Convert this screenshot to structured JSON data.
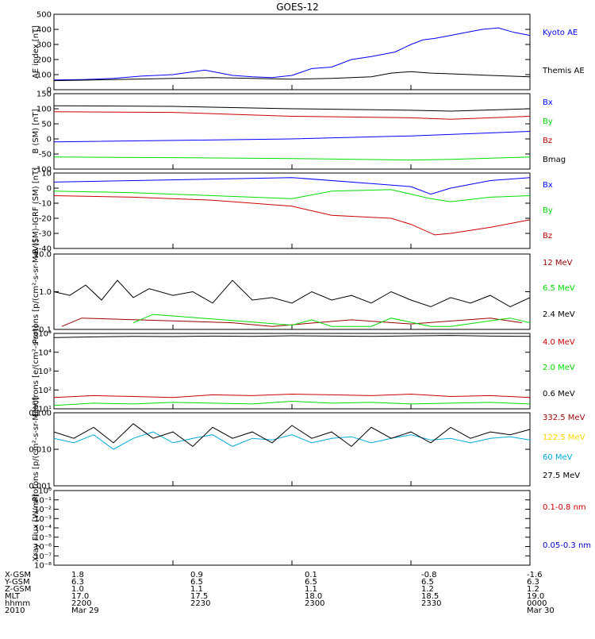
{
  "title": "GOES-12",
  "colors": {
    "black": "#000000",
    "blue": "#0000ff",
    "red": "#cc0000",
    "green": "#00dd00",
    "darkred": "#990000",
    "cyan": "#00aadd",
    "yellow": "#ffd700",
    "navy": "#0000cc"
  },
  "chart_data": [
    {
      "type": "line",
      "ylabel": "AE index [nT]",
      "yscale": "linear",
      "ylim": [
        0,
        500
      ],
      "yticks": [
        "0",
        "100",
        "200",
        "300",
        "400",
        "500"
      ],
      "xlim": [
        0,
        120
      ],
      "series": [
        {
          "name": "Kyoto AE",
          "color": "#0000ff",
          "x": [
            0,
            8,
            15,
            22,
            30,
            38,
            45,
            50,
            55,
            60,
            65,
            70,
            75,
            80,
            86,
            90,
            93,
            96,
            100,
            104,
            108,
            112,
            116,
            120
          ],
          "values": [
            65,
            68,
            75,
            90,
            100,
            130,
            95,
            85,
            80,
            95,
            140,
            150,
            200,
            220,
            250,
            300,
            330,
            340,
            360,
            380,
            400,
            410,
            380,
            360
          ]
        },
        {
          "name": "Themis AE",
          "color": "#000000",
          "x": [
            0,
            10,
            20,
            30,
            40,
            50,
            60,
            70,
            75,
            80,
            85,
            90,
            95,
            100,
            105,
            110,
            115,
            120
          ],
          "values": [
            60,
            65,
            70,
            75,
            80,
            75,
            70,
            75,
            80,
            85,
            110,
            120,
            110,
            105,
            100,
            95,
            90,
            85
          ]
        }
      ]
    },
    {
      "type": "line",
      "ylabel": "B (SM) [nT]",
      "yscale": "linear",
      "ylim": [
        -100,
        150
      ],
      "yticks": [
        "-100",
        "-50",
        "0",
        "50",
        "100",
        "150"
      ],
      "xlim": [
        0,
        120
      ],
      "series": [
        {
          "name": "Bx",
          "color": "#0000ff",
          "x": [
            0,
            30,
            60,
            90,
            120
          ],
          "values": [
            -10,
            -5,
            0,
            10,
            25
          ]
        },
        {
          "name": "By",
          "color": "#00dd00",
          "x": [
            0,
            30,
            60,
            90,
            100,
            120
          ],
          "values": [
            -60,
            -62,
            -65,
            -70,
            -68,
            -60
          ]
        },
        {
          "name": "Bz",
          "color": "#cc0000",
          "x": [
            0,
            30,
            60,
            90,
            100,
            120
          ],
          "values": [
            90,
            88,
            75,
            70,
            65,
            75
          ]
        },
        {
          "name": "Bmag",
          "color": "#000000",
          "x": [
            0,
            30,
            60,
            90,
            100,
            120
          ],
          "values": [
            110,
            108,
            100,
            95,
            92,
            100
          ]
        }
      ]
    },
    {
      "type": "line",
      "ylabel": "B (SM)-IGRF (SM) [nT]",
      "yscale": "linear",
      "ylim": [
        -40,
        10
      ],
      "yticks": [
        "-40",
        "-30",
        "-20",
        "-10",
        "0",
        "10"
      ],
      "xlim": [
        0,
        120
      ],
      "series": [
        {
          "name": "Bx",
          "color": "#0000ff",
          "x": [
            0,
            20,
            40,
            60,
            80,
            90,
            95,
            100,
            110,
            120
          ],
          "values": [
            4,
            5,
            6,
            7,
            3,
            1,
            -4,
            0,
            5,
            7
          ]
        },
        {
          "name": "By",
          "color": "#00dd00",
          "x": [
            0,
            20,
            40,
            60,
            70,
            85,
            95,
            100,
            110,
            120
          ],
          "values": [
            -2,
            -3,
            -5,
            -7,
            -2,
            -1,
            -7,
            -9,
            -6,
            -5
          ]
        },
        {
          "name": "Bz",
          "color": "#cc0000",
          "x": [
            0,
            20,
            40,
            60,
            70,
            85,
            90,
            96,
            100,
            110,
            120
          ],
          "values": [
            -5,
            -6,
            -8,
            -12,
            -18,
            -20,
            -24,
            -31,
            -30,
            -26,
            -21
          ]
        }
      ]
    },
    {
      "type": "line",
      "ylabel": "Protons [p/(cm²-s-sr-MeV)]",
      "yscale": "log",
      "ylim": [
        0.1,
        10
      ],
      "yticks": [
        "0.1",
        "1.0",
        "10.0"
      ],
      "xlim": [
        0,
        120
      ],
      "series": [
        {
          "name": "12 MeV",
          "color": "#990000",
          "x": [
            2,
            7,
            45,
            55,
            75,
            90,
            110,
            118
          ],
          "values": [
            0.12,
            0.2,
            0.15,
            0.12,
            0.18,
            0.14,
            0.2,
            0.15
          ]
        },
        {
          "name": "6.5 MeV",
          "color": "#00dd00",
          "x": [
            20,
            25,
            60,
            65,
            70,
            80,
            85,
            95,
            100,
            115,
            120
          ],
          "values": [
            0.15,
            0.25,
            0.13,
            0.18,
            0.12,
            0.12,
            0.2,
            0.12,
            0.12,
            0.2,
            0.15
          ]
        },
        {
          "name": "2.4 MeV",
          "color": "#000000",
          "x": [
            0,
            4,
            8,
            12,
            16,
            20,
            24,
            30,
            35,
            40,
            45,
            50,
            55,
            60,
            65,
            70,
            75,
            80,
            85,
            90,
            95,
            100,
            105,
            110,
            115,
            120
          ],
          "values": [
            1.0,
            0.8,
            1.5,
            0.6,
            2.0,
            0.7,
            1.2,
            0.8,
            1.0,
            0.5,
            2.0,
            0.6,
            0.7,
            0.5,
            1.0,
            0.6,
            0.8,
            0.5,
            1.0,
            0.6,
            0.4,
            0.7,
            0.5,
            0.8,
            0.4,
            0.7
          ]
        }
      ]
    },
    {
      "type": "line",
      "ylabel": "Electrons [e/(cm²-s-sr)]",
      "yscale": "log",
      "ylim": [
        10,
        100000
      ],
      "yticks": [
        "10¹",
        "10²",
        "10³",
        "10⁴",
        "10⁵"
      ],
      "xlim": [
        0,
        120
      ],
      "series": [
        {
          "name": "4.0 MeV",
          "color": "#cc0000",
          "x": [
            0,
            10,
            20,
            30,
            40,
            50,
            60,
            70,
            80,
            90,
            100,
            110,
            120
          ],
          "values": [
            40,
            50,
            45,
            40,
            55,
            50,
            60,
            55,
            50,
            60,
            45,
            50,
            40
          ]
        },
        {
          "name": "2.0 MeV",
          "color": "#00dd00",
          "x": [
            0,
            10,
            20,
            30,
            40,
            50,
            60,
            70,
            80,
            90,
            100,
            110,
            120
          ],
          "values": [
            15,
            20,
            18,
            22,
            20,
            18,
            25,
            20,
            22,
            18,
            20,
            22,
            18
          ]
        },
        {
          "name": "0.6 MeV",
          "color": "#000000",
          "x": [
            0,
            10,
            20,
            30,
            40,
            50,
            60,
            70,
            80,
            90,
            100,
            110,
            120
          ],
          "values": [
            60000,
            65000,
            70000,
            68000,
            72000,
            70000,
            75000,
            72000,
            70000,
            74000,
            78000,
            72000,
            70000
          ]
        }
      ]
    },
    {
      "type": "line",
      "ylabel": "Protons [p/(cm²-s-sr-MeV)]",
      "yscale": "log",
      "ylim": [
        0.001,
        0.1
      ],
      "yticks": [
        "0.001",
        "0.010",
        "0.100"
      ],
      "xlim": [
        0,
        120
      ],
      "series": [
        {
          "name": "332.5 MeV",
          "color": "#990000",
          "x": [],
          "values": []
        },
        {
          "name": "122.5 MeV",
          "color": "#ffd700",
          "x": [],
          "values": []
        },
        {
          "name": "60 MeV",
          "color": "#00aadd",
          "x": [
            0,
            5,
            10,
            15,
            20,
            25,
            30,
            35,
            40,
            45,
            50,
            55,
            60,
            65,
            70,
            75,
            80,
            85,
            90,
            95,
            100,
            105,
            110,
            115,
            120
          ],
          "values": [
            0.02,
            0.015,
            0.025,
            0.01,
            0.02,
            0.03,
            0.015,
            0.02,
            0.025,
            0.012,
            0.02,
            0.018,
            0.025,
            0.015,
            0.02,
            0.022,
            0.015,
            0.02,
            0.025,
            0.018,
            0.02,
            0.015,
            0.02,
            0.022,
            0.018
          ]
        },
        {
          "name": "27.5 MeV",
          "color": "#000000",
          "x": [
            0,
            5,
            10,
            15,
            20,
            25,
            30,
            35,
            40,
            45,
            50,
            55,
            60,
            65,
            70,
            75,
            80,
            85,
            90,
            95,
            100,
            105,
            110,
            115,
            120
          ],
          "values": [
            0.03,
            0.02,
            0.04,
            0.015,
            0.05,
            0.02,
            0.03,
            0.012,
            0.04,
            0.02,
            0.03,
            0.015,
            0.045,
            0.02,
            0.03,
            0.012,
            0.04,
            0.02,
            0.03,
            0.015,
            0.04,
            0.02,
            0.03,
            0.025,
            0.035
          ]
        }
      ]
    },
    {
      "type": "line",
      "ylabel": "Xray Flux [W/m²]",
      "yscale": "log",
      "ylim": [
        1e-08,
        1
      ],
      "yticks": [
        "10⁻⁸",
        "10⁻⁷",
        "10⁻⁶",
        "10⁻⁵",
        "10⁻⁴",
        "10⁻³",
        "10⁻²",
        "10⁻¹",
        "10⁰"
      ],
      "xlim": [
        0,
        120
      ],
      "series": [
        {
          "name": "0.1-0.8 nm",
          "color": "#cc0000",
          "x": [],
          "values": []
        },
        {
          "name": "0.05-0.3 nm",
          "color": "#0000cc",
          "x": [],
          "values": []
        }
      ]
    }
  ],
  "footer": {
    "labels": [
      "X-GSM",
      "Y-GSM",
      "Z-GSM",
      "MLT",
      "hhmm",
      "2010"
    ],
    "columns": [
      [
        "1.8",
        "6.3",
        "1.0",
        "17.0",
        "2200",
        "Mar 29"
      ],
      [
        "0.9",
        "6.5",
        "1.1",
        "17.5",
        "2230",
        ""
      ],
      [
        "0.1",
        "6.5",
        "1.1",
        "18.0",
        "2300",
        ""
      ],
      [
        "-0.8",
        "6.5",
        "1.2",
        "18.5",
        "2330",
        ""
      ],
      [
        "-1.6",
        "6.3",
        "1.2",
        "19.0",
        "0000",
        "Mar 30"
      ]
    ]
  }
}
